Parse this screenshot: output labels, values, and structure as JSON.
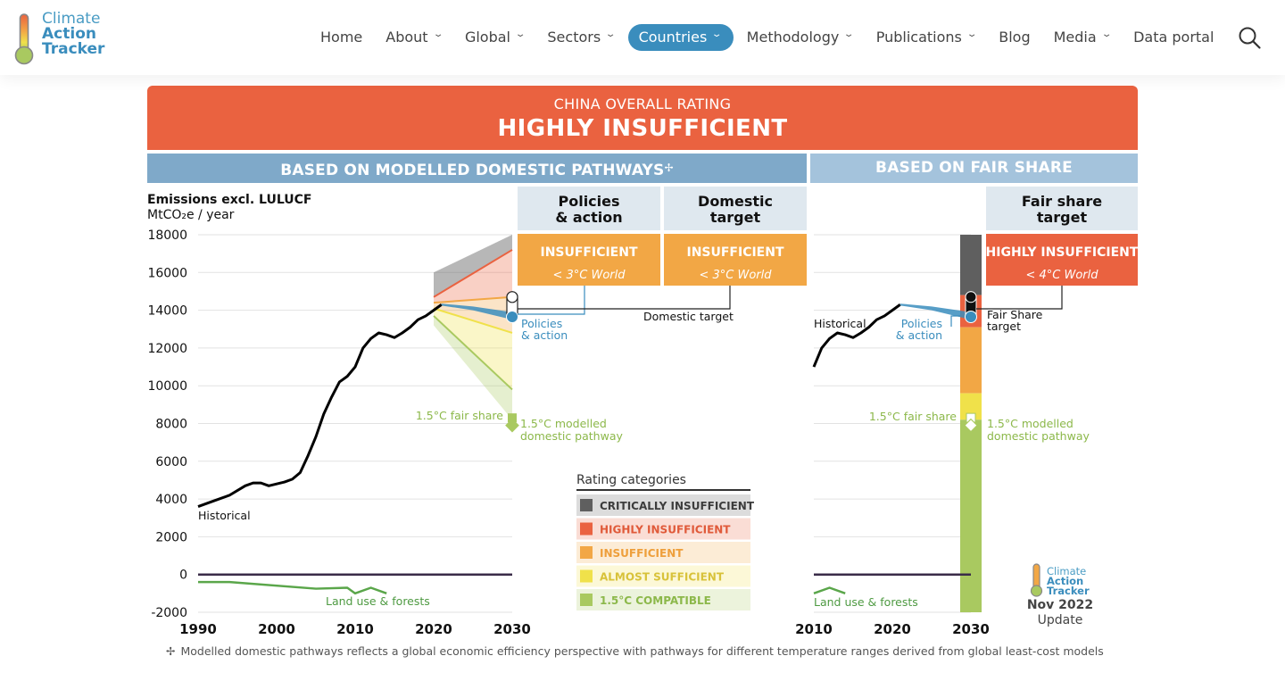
{
  "header": {
    "logo": {
      "line1": "Climate",
      "line2": "Action",
      "line3": "Tracker"
    },
    "nav": [
      {
        "label": "Home",
        "dropdown": false,
        "active": false
      },
      {
        "label": "About",
        "dropdown": true,
        "active": false
      },
      {
        "label": "Global",
        "dropdown": true,
        "active": false
      },
      {
        "label": "Sectors",
        "dropdown": true,
        "active": false
      },
      {
        "label": "Countries",
        "dropdown": true,
        "active": true
      },
      {
        "label": "Methodology",
        "dropdown": true,
        "active": false
      },
      {
        "label": "Publications",
        "dropdown": true,
        "active": false
      },
      {
        "label": "Blog",
        "dropdown": false,
        "active": false
      },
      {
        "label": "Media",
        "dropdown": true,
        "active": false
      },
      {
        "label": "Data portal",
        "dropdown": false,
        "active": false
      }
    ]
  },
  "rating": {
    "subtitle": "CHINA OVERALL RATING",
    "title": "HIGHLY INSUFFICIENT"
  },
  "sections": {
    "left": "BASED ON MODELLED DOMESTIC PATHWAYS",
    "left_mark": "✢",
    "right": "BASED ON FAIR SHARE"
  },
  "rating_boxes": [
    {
      "header_line1": "Policies",
      "header_line2": "& action",
      "rating": "INSUFFICIENT",
      "world": "< 3°C World",
      "color": "#f2a745"
    },
    {
      "header_line1": "Domestic",
      "header_line2": "target",
      "rating": "INSUFFICIENT",
      "world": "< 3°C World",
      "color": "#f2a745"
    },
    {
      "header_line1": "Fair share",
      "header_line2": "target",
      "rating": "HIGHLY INSUFFICIENT",
      "world": "< 4°C World",
      "color": "#ea6240"
    }
  ],
  "colors": {
    "critically": "#5f5f5f",
    "highly": "#ea6240",
    "insufficient": "#f2a745",
    "almost": "#f0e14a",
    "compatible": "#a9c960",
    "policies": "#3a8dbd",
    "historical": "#000000",
    "landuse": "#5aa64a"
  },
  "chart_data": {
    "type": "line",
    "ylabel": "Emissions excl. LULUCF",
    "yunit": "MtCO₂e / year",
    "ylim": [
      -2000,
      18000
    ],
    "yticks": [
      18000,
      16000,
      14000,
      12000,
      10000,
      8000,
      6000,
      4000,
      2000,
      0,
      -2000
    ],
    "yticklabels": [
      "18000",
      "16000",
      "14000",
      "12000",
      "10000",
      "8000",
      "6000",
      "4000",
      "2000",
      "0",
      "-2000"
    ],
    "left_panel": {
      "xlim": [
        1990,
        2030
      ],
      "xticks": [
        "1990",
        "2000",
        "2010",
        "2020",
        "2030"
      ],
      "historical": {
        "label": "Historical",
        "x": [
          1990,
          1992,
          1994,
          1996,
          1997,
          1998,
          1999,
          2001,
          2002,
          2003,
          2004,
          2005,
          2006,
          2007,
          2008,
          2009,
          2010,
          2011,
          2012,
          2013,
          2014,
          2015,
          2016,
          2017,
          2018,
          2019,
          2020,
          2021
        ],
        "y": [
          3600,
          3900,
          4200,
          4700,
          4850,
          4850,
          4700,
          4900,
          5050,
          5400,
          6300,
          7300,
          8500,
          9400,
          10200,
          10500,
          11000,
          12000,
          12500,
          12800,
          12700,
          12550,
          12800,
          13100,
          13500,
          13700,
          14000,
          14300
        ]
      },
      "land_use": {
        "label": "Land use & forests",
        "x": [
          1990,
          1994,
          2005,
          2009,
          2010,
          2012,
          2014
        ],
        "y": [
          -400,
          -400,
          -750,
          -700,
          -1000,
          -700,
          -1000
        ]
      },
      "policies_action": {
        "label_line1": "Policies",
        "label_line2": "& action",
        "x": [
          2021,
          2025,
          2030
        ],
        "low": [
          14250,
          14000,
          13500
        ],
        "high": [
          14350,
          14200,
          13900
        ]
      },
      "domestic_target": {
        "label": "Domestic target",
        "year": 2030,
        "low": 13700,
        "high": 14700
      },
      "fair_share_1_5": {
        "label": "1.5°C fair share",
        "year": 2030,
        "value": 8300
      },
      "modelled_1_5": {
        "label_line1": "1.5°C modelled",
        "label_line2": "domestic pathway",
        "year": 2030,
        "value": 7900
      },
      "bands": {
        "start_year": 2020,
        "end_year": 2030,
        "start": [
          16000,
          14700,
          14400,
          14100,
          13700,
          13200,
          12800
        ],
        "end": [
          18000,
          17200,
          14700,
          12800,
          9800,
          8200,
          5800
        ]
      }
    },
    "right_panel": {
      "xlim": [
        2010,
        2030
      ],
      "xticks": [
        "2010",
        "2020",
        "2030"
      ],
      "historical": {
        "label": "Historical",
        "x": [
          2010,
          2011,
          2012,
          2013,
          2014,
          2015,
          2016,
          2017,
          2018,
          2019,
          2020,
          2021
        ],
        "y": [
          11000,
          12000,
          12500,
          12800,
          12700,
          12550,
          12800,
          13100,
          13500,
          13700,
          14000,
          14300
        ]
      },
      "land_use": {
        "label": "Land use & forests",
        "x": [
          2010,
          2012,
          2014
        ],
        "y": [
          -1000,
          -700,
          -1000
        ]
      },
      "policies_action": {
        "label_line1": "Policies",
        "label_line2": "& action",
        "x": [
          2021,
          2025,
          2030
        ],
        "low": [
          14250,
          14000,
          13500
        ],
        "high": [
          14350,
          14200,
          13900
        ]
      },
      "fair_share_target": {
        "label_line1": "Fair Share",
        "label_line2": "target",
        "year": 2030,
        "low": 13700,
        "high": 14700
      },
      "fair_share_1_5": {
        "label": "1.5°C fair share",
        "year": 2030,
        "value": 8300
      },
      "modelled_1_5": {
        "label_line1": "1.5°C modelled",
        "label_line2": "domestic pathway",
        "year": 2030,
        "value": 7900
      },
      "rating_bar_boundaries": [
        18000,
        14800,
        13100,
        9600,
        8200,
        -2000
      ]
    },
    "legend": {
      "title": "Rating categories",
      "placement": "bottom-center",
      "items": [
        {
          "label": "CRITICALLY INSUFFICIENT",
          "color": "#5f5f5f",
          "text_color": "#3d3d3d"
        },
        {
          "label": "HIGHLY INSUFFICIENT",
          "color": "#ea6240",
          "text_color": "#e05a3a"
        },
        {
          "label": "INSUFFICIENT",
          "color": "#f2a745",
          "text_color": "#ee9f3b"
        },
        {
          "label": "ALMOST SUFFICIENT",
          "color": "#f0e14a",
          "text_color": "#d8c23a"
        },
        {
          "label": "1.5°C COMPATIBLE",
          "color": "#a9c960",
          "text_color": "#8cb84a"
        }
      ]
    },
    "update": {
      "date": "Nov 2022",
      "label": "Update"
    }
  },
  "footnote": "Modelled domestic pathways reflects a global economic efficiency perspective with pathways for different temperature ranges derived from global least-cost models",
  "footnote_mark": "✢"
}
